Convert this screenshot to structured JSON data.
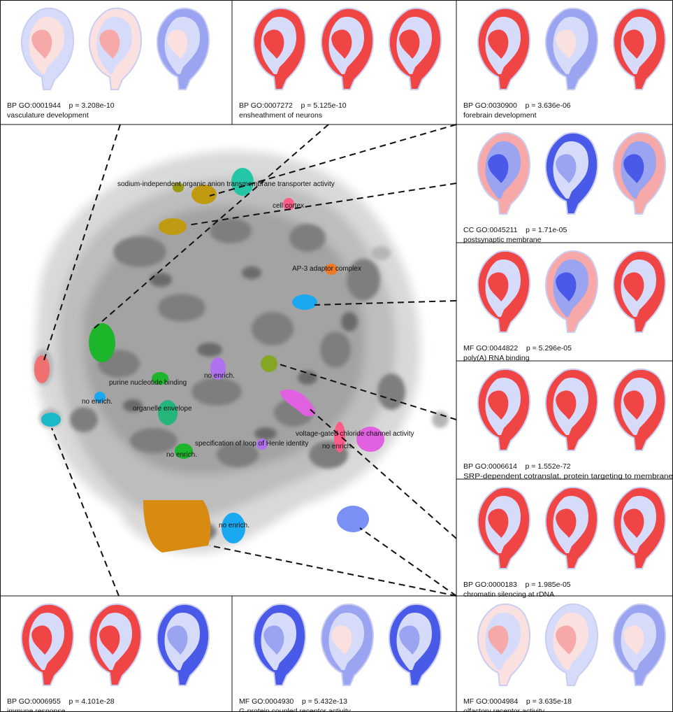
{
  "panels": [
    {
      "id": "vasculature",
      "line1": "BP GO:0001944    p = 3.208e-10",
      "line2": "vasculature development"
    },
    {
      "id": "ensheathment",
      "line1": "BP GO:0007272    p = 5.125e-10",
      "line2": "ensheathment of neurons"
    },
    {
      "id": "forebrain",
      "line1": "BP GO:0030900    p = 3.636e-06",
      "line2": "forebrain development"
    },
    {
      "id": "postsynaptic",
      "line1": "CC GO:0045211    p = 1.71e-05",
      "line2": "postsynaptic membrane"
    },
    {
      "id": "polya",
      "line1": "MF GO:0044822    p = 5.296e-05",
      "line2": "poly(A) RNA binding"
    },
    {
      "id": "srp",
      "line1": "BP GO:0006614    p = 1.552e-72",
      "line2": "SRP-dependent cotranslat. protein targeting to membrane"
    },
    {
      "id": "chromatin",
      "line1": "BP GO:0000183    p = 1.985e-05",
      "line2": "chromatin silencing at rDNA"
    },
    {
      "id": "immune",
      "line1": "BP GO:0006955    p = 4.101e-28",
      "line2": "immune response"
    },
    {
      "id": "gpcr",
      "line1": "MF GO:0004930    p = 5.432e-13",
      "line2": "G-protein coupled receptor activity"
    },
    {
      "id": "olfactory",
      "line1": "MF GO:0004984    p = 3.635e-18",
      "line2": "olfactory receptor activity"
    }
  ],
  "map_labels": {
    "sodium": "sodium-independent organic anion transmembrane transporter activity",
    "cell_cortex": "cell cortex",
    "ap3": "AP-3 adaptor complex",
    "purine": "purine nucleotide binding",
    "organelle": "organelle envelope",
    "no_enrich": "no enrich.",
    "henle": "specification of loop of Henle identity",
    "chloride": "voltage-gated chloride channel activity"
  },
  "colors": {
    "strong_red": "#f04545",
    "light_red": "#f7a9a9",
    "pale_red": "#fbe0e0",
    "strong_blue": "#4a5ae8",
    "light_blue": "#9aa4f0",
    "pale_blue": "#d6dbfa",
    "cluster_olive": "#9a9a10",
    "cluster_teal": "#25c5a8",
    "cluster_pink": "#ff5c8a",
    "cluster_gold": "#c09a10",
    "cluster_orange": "#f07a25",
    "cluster_blue": "#1aa8f0",
    "cluster_green": "#1db52a",
    "cluster_salmon": "#f07070",
    "cluster_cyan": "#1ab8c8",
    "cluster_lilac": "#b070f0",
    "cluster_magenta": "#e060e0",
    "cluster_amber": "#d98a10",
    "cluster_periwinkle": "#7a90f5",
    "cluster_mossgreen": "#84a622"
  }
}
